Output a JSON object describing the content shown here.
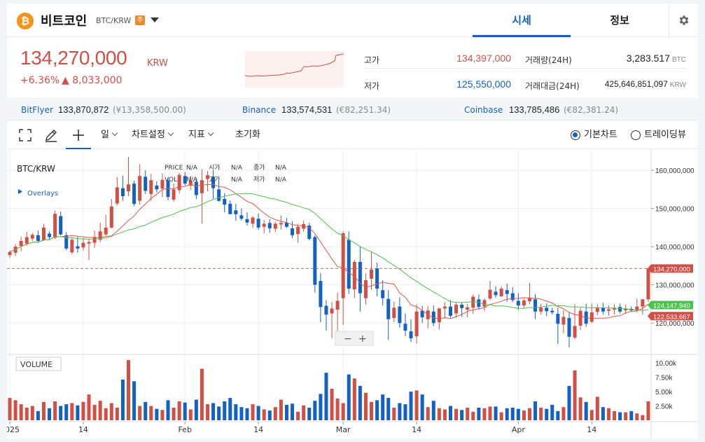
{
  "header": {
    "coin_symbol": "₿",
    "coin_name": "비트코인",
    "pair": "BTC/KRW",
    "warn_badge": "주",
    "tabs": [
      {
        "label": "시세",
        "active": true
      },
      {
        "label": "정보",
        "active": false
      }
    ],
    "settings_icon": "gear-icon"
  },
  "price": {
    "current": "134,270,000",
    "currency": "KRW",
    "change_pct": "+6.36%",
    "change_abs": "▲ 8,033,000",
    "high_label": "고가",
    "high_value": "134,397,000",
    "low_label": "저가",
    "low_value": "125,550,000",
    "vol_label": "거래량(24H)",
    "vol_value": "3,283.517",
    "vol_unit": "BTC",
    "amt_label": "거래대금(24H)",
    "amt_value": "425,646,851,097",
    "amt_unit": "KRW"
  },
  "exchanges": [
    {
      "name": "BitFlyer",
      "price": "133,870,872",
      "local": "(¥13,358,500.00)"
    },
    {
      "name": "Binance",
      "price": "133,574,531",
      "local": "(€82,251.34)"
    },
    {
      "name": "Coinbase",
      "price": "133,785,486",
      "local": "(€82,381.24)"
    }
  ],
  "toolbar": {
    "fullscreen_icon": "fullscreen-icon",
    "pen_icon": "pen-icon",
    "crosshair_icon": "crosshair-icon",
    "interval": "일",
    "chart_settings": "차트설정",
    "indicators": "지표",
    "reset": "초기화",
    "basic_chart": "기본차트",
    "trading_view": "트레이딩뷰"
  },
  "colors": {
    "up": "#d24f45",
    "down": "#1261c4",
    "ma_short": "#e0564a",
    "ma_long": "#4cc24c"
  },
  "chart_legend": {
    "symbol": "BTC/KRW",
    "overlays": "Overlays",
    "price_label": "PRICE",
    "vol_label": "VOL",
    "open_label": "시가",
    "high_label": "고가",
    "close_label": "종가",
    "low_label": "저가",
    "na": "N/A",
    "volume_panel_label": "VOLUME",
    "zoom_out": "−",
    "zoom_in": "+"
  },
  "chart_data": {
    "type": "candlestick",
    "y_axis": {
      "ticks": [
        120000000,
        130000000,
        140000000,
        150000000,
        160000000
      ],
      "tick_labels": [
        "120,000,000",
        "130,000,000",
        "140,000,000",
        "150,000,000",
        "160,000,000"
      ],
      "range": [
        112500000,
        163500000
      ]
    },
    "volume_axis": {
      "ticks": [
        2500,
        5000,
        7500,
        10000
      ],
      "tick_labels": [
        "2.50k",
        "5.00k",
        "7.50k",
        "10.00k"
      ],
      "range": [
        0,
        11000
      ]
    },
    "x_axis": {
      "tick_labels": [
        {
          "label": "2025",
          "index": 0
        },
        {
          "label": "14",
          "index": 13
        },
        {
          "label": "Feb",
          "index": 31
        },
        {
          "label": "14",
          "index": 44
        },
        {
          "label": "Mar",
          "index": 59
        },
        {
          "label": "14",
          "index": 72
        },
        {
          "label": "Apr",
          "index": 90
        },
        {
          "label": "14",
          "index": 103
        }
      ]
    },
    "price_badges": [
      {
        "label": "134,270,000",
        "value": 134270000,
        "color": "#d24f45"
      },
      {
        "label": "124,147,940",
        "value": 124147940,
        "color": "#4cc24c"
      },
      {
        "label": "122,533,667",
        "value": 122533667,
        "color": "#d24f45"
      }
    ],
    "current_price_line": 134270000,
    "candles": [
      [
        137.8,
        139.0,
        137.0,
        138.6,
        3.9
      ],
      [
        138.4,
        140.7,
        137.5,
        140.0,
        3.5
      ],
      [
        140.2,
        142.6,
        138.8,
        141.5,
        2.8
      ],
      [
        140.8,
        143.9,
        140.3,
        142.5,
        2.2
      ],
      [
        142.1,
        143.6,
        141.5,
        143.1,
        2.5
      ],
      [
        143.0,
        144.2,
        141.0,
        141.5,
        1.6
      ],
      [
        141.7,
        146.0,
        141.4,
        145.0,
        3.2
      ],
      [
        143.4,
        144.0,
        141.8,
        142.5,
        2.1
      ],
      [
        142.3,
        149.4,
        142.0,
        148.6,
        3.3
      ],
      [
        148.0,
        149.2,
        142.9,
        143.2,
        2.5
      ],
      [
        143.0,
        143.8,
        139.0,
        139.5,
        2.8
      ],
      [
        138.5,
        142.2,
        138.0,
        141.8,
        3.0
      ],
      [
        140.1,
        142.6,
        138.4,
        139.5,
        2.6
      ],
      [
        139.8,
        142.3,
        139.0,
        141.0,
        3.2
      ],
      [
        140.8,
        142.0,
        136.5,
        141.2,
        4.5
      ],
      [
        141.0,
        144.2,
        139.7,
        142.5,
        2.7
      ],
      [
        141.8,
        146.3,
        141.2,
        144.0,
        3.4
      ],
      [
        143.2,
        148.3,
        142.8,
        145.0,
        2.1
      ],
      [
        145.0,
        152.5,
        144.8,
        150.5,
        3.0
      ],
      [
        151.3,
        158.2,
        150.8,
        155.5,
        2.2
      ],
      [
        155.3,
        158.6,
        152.0,
        153.2,
        7.1
      ],
      [
        154.5,
        163.5,
        153.2,
        156.3,
        10.5
      ],
      [
        156.5,
        157.3,
        150.6,
        151.2,
        6.8
      ],
      [
        152.0,
        161.6,
        151.0,
        158.5,
        2.5
      ],
      [
        158.3,
        160.0,
        153.8,
        154.6,
        3.2
      ],
      [
        153.8,
        159.0,
        152.0,
        157.4,
        2.5
      ],
      [
        156.0,
        157.1,
        154.2,
        155.0,
        2.0
      ],
      [
        155.2,
        159.2,
        153.0,
        157.5,
        1.8
      ],
      [
        157.3,
        158.0,
        152.1,
        153.0,
        3.5
      ],
      [
        152.3,
        156.5,
        151.8,
        155.0,
        2.2
      ],
      [
        154.8,
        159.3,
        154.0,
        158.8,
        3.3
      ],
      [
        158.5,
        159.5,
        156.0,
        156.5,
        3.1
      ],
      [
        156.0,
        158.5,
        154.8,
        157.2,
        1.9
      ],
      [
        157.0,
        158.0,
        152.4,
        153.5,
        3.6
      ],
      [
        154.0,
        160.3,
        146.0,
        157.4,
        9.0
      ],
      [
        157.7,
        159.8,
        154.5,
        158.7,
        2.8
      ],
      [
        158.3,
        160.0,
        152.5,
        155.3,
        3.0
      ],
      [
        155.0,
        157.0,
        151.8,
        152.0,
        2.4
      ],
      [
        152.5,
        154.0,
        149.0,
        151.0,
        3.3
      ],
      [
        151.2,
        152.1,
        148.7,
        148.5,
        3.9
      ],
      [
        149.5,
        151.2,
        146.8,
        148.5,
        2.8
      ],
      [
        148.2,
        150.0,
        146.8,
        147.3,
        2.3
      ],
      [
        147.2,
        149.0,
        145.5,
        146.3,
        2.1
      ],
      [
        146.0,
        148.0,
        144.9,
        147.6,
        2.8
      ],
      [
        147.3,
        148.6,
        144.4,
        145.0,
        2.5
      ],
      [
        145.2,
        147.0,
        143.5,
        146.0,
        1.9
      ],
      [
        146.2,
        147.2,
        143.6,
        144.8,
        1.7
      ],
      [
        144.7,
        146.5,
        143.8,
        146.0,
        2.3
      ],
      [
        145.8,
        148.2,
        144.5,
        146.2,
        3.6
      ],
      [
        146.3,
        147.5,
        144.9,
        145.2,
        2.7
      ],
      [
        144.8,
        146.6,
        142.2,
        143.0,
        2.9
      ],
      [
        143.3,
        146.0,
        141.0,
        145.2,
        1.5
      ],
      [
        144.7,
        146.8,
        143.9,
        145.9,
        2.6
      ],
      [
        145.5,
        146.2,
        141.7,
        142.0,
        2.2
      ],
      [
        142.5,
        143.0,
        128.0,
        130.0,
        3.4
      ],
      [
        131.0,
        133.0,
        120.2,
        124.2,
        4.6
      ],
      [
        124.5,
        126.0,
        118.0,
        122.2,
        8.3
      ],
      [
        122.5,
        125.5,
        116.0,
        123.8,
        5.5
      ],
      [
        123.5,
        128.0,
        117.5,
        125.8,
        3.8
      ],
      [
        126.5,
        144.0,
        119.5,
        143.5,
        3.0
      ],
      [
        141.8,
        144.0,
        127.6,
        129.0,
        8.0
      ],
      [
        128.8,
        136.5,
        126.5,
        136.0,
        7.3
      ],
      [
        136.0,
        140.0,
        123.0,
        127.8,
        6.0
      ],
      [
        126.5,
        133.0,
        124.8,
        131.2,
        4.8
      ],
      [
        131.6,
        138.6,
        128.7,
        134.0,
        3.2
      ],
      [
        134.3,
        135.8,
        127.0,
        129.0,
        3.5
      ],
      [
        128.6,
        131.2,
        124.6,
        126.5,
        4.5
      ],
      [
        126.3,
        128.6,
        115.6,
        121.0,
        3.9
      ],
      [
        121.3,
        125.6,
        120.2,
        124.0,
        2.2
      ],
      [
        124.3,
        126.7,
        118.8,
        120.0,
        3.0
      ],
      [
        119.8,
        122.5,
        116.6,
        118.0,
        2.8
      ],
      [
        117.8,
        121.0,
        115.0,
        116.0,
        5.0
      ],
      [
        116.5,
        124.9,
        114.6,
        123.0,
        5.2
      ],
      [
        123.2,
        124.5,
        120.0,
        121.5,
        4.5
      ],
      [
        121.0,
        124.5,
        118.6,
        123.3,
        2.3
      ],
      [
        123.0,
        124.6,
        119.2,
        120.0,
        3.4
      ],
      [
        120.2,
        124.0,
        118.3,
        123.8,
        2.1
      ],
      [
        123.8,
        125.5,
        121.2,
        124.3,
        1.9
      ],
      [
        124.3,
        126.0,
        121.4,
        121.9,
        2.5
      ],
      [
        122.5,
        125.5,
        121.4,
        124.8,
        2.0
      ],
      [
        124.8,
        125.4,
        121.6,
        123.9,
        1.8
      ],
      [
        123.5,
        125.0,
        121.5,
        124.1,
        2.2
      ],
      [
        124.0,
        127.5,
        122.4,
        126.9,
        1.5
      ],
      [
        126.2,
        127.5,
        123.4,
        124.2,
        2.2
      ],
      [
        124.3,
        126.4,
        123.1,
        126.0,
        2.1
      ],
      [
        126.4,
        131.0,
        126.0,
        128.7,
        2.4
      ],
      [
        128.2,
        129.6,
        126.6,
        127.3,
        2.4
      ],
      [
        127.0,
        129.6,
        126.8,
        129.0,
        1.4
      ],
      [
        128.6,
        130.3,
        125.6,
        127.6,
        2.1
      ],
      [
        127.8,
        129.4,
        125.5,
        126.0,
        2.2
      ],
      [
        125.8,
        127.8,
        123.4,
        124.6,
        2.0
      ],
      [
        124.6,
        126.4,
        123.8,
        125.9,
        1.7
      ],
      [
        125.7,
        130.5,
        124.9,
        126.5,
        2.1
      ],
      [
        126.2,
        127.6,
        121.0,
        123.0,
        3.3
      ],
      [
        123.0,
        125.0,
        122.2,
        124.0,
        2.2
      ],
      [
        124.0,
        125.1,
        121.8,
        123.1,
        2.0
      ],
      [
        123.2,
        124.0,
        122.2,
        122.8,
        2.7
      ],
      [
        122.4,
        124.0,
        114.5,
        119.8,
        1.6
      ],
      [
        119.6,
        123.4,
        117.3,
        121.6,
        2.3
      ],
      [
        121.3,
        122.8,
        113.6,
        116.4,
        6.0
      ],
      [
        116.2,
        124.9,
        115.7,
        119.2,
        8.7
      ],
      [
        119.3,
        124.0,
        118.2,
        123.2,
        4.0
      ],
      [
        123.0,
        125.0,
        119.0,
        119.8,
        3.2
      ],
      [
        120.3,
        125.1,
        120.0,
        122.8,
        1.8
      ],
      [
        122.9,
        124.9,
        122.0,
        124.0,
        4.1
      ],
      [
        124.0,
        125.3,
        122.2,
        123.0,
        2.3
      ],
      [
        123.2,
        124.6,
        121.9,
        123.6,
        2.1
      ],
      [
        123.5,
        124.9,
        122.2,
        124.0,
        1.6
      ],
      [
        124.2,
        125.1,
        122.5,
        123.0,
        1.4
      ],
      [
        123.3,
        124.8,
        122.4,
        123.8,
        1.4
      ],
      [
        123.7,
        124.3,
        122.9,
        123.3,
        1.6
      ],
      [
        123.3,
        126.3,
        122.8,
        124.3,
        1.2
      ],
      [
        124.3,
        126.3,
        122.2,
        126.2,
        0.9
      ],
      [
        126.2,
        134.4,
        125.5,
        134.3,
        3.3
      ]
    ]
  }
}
